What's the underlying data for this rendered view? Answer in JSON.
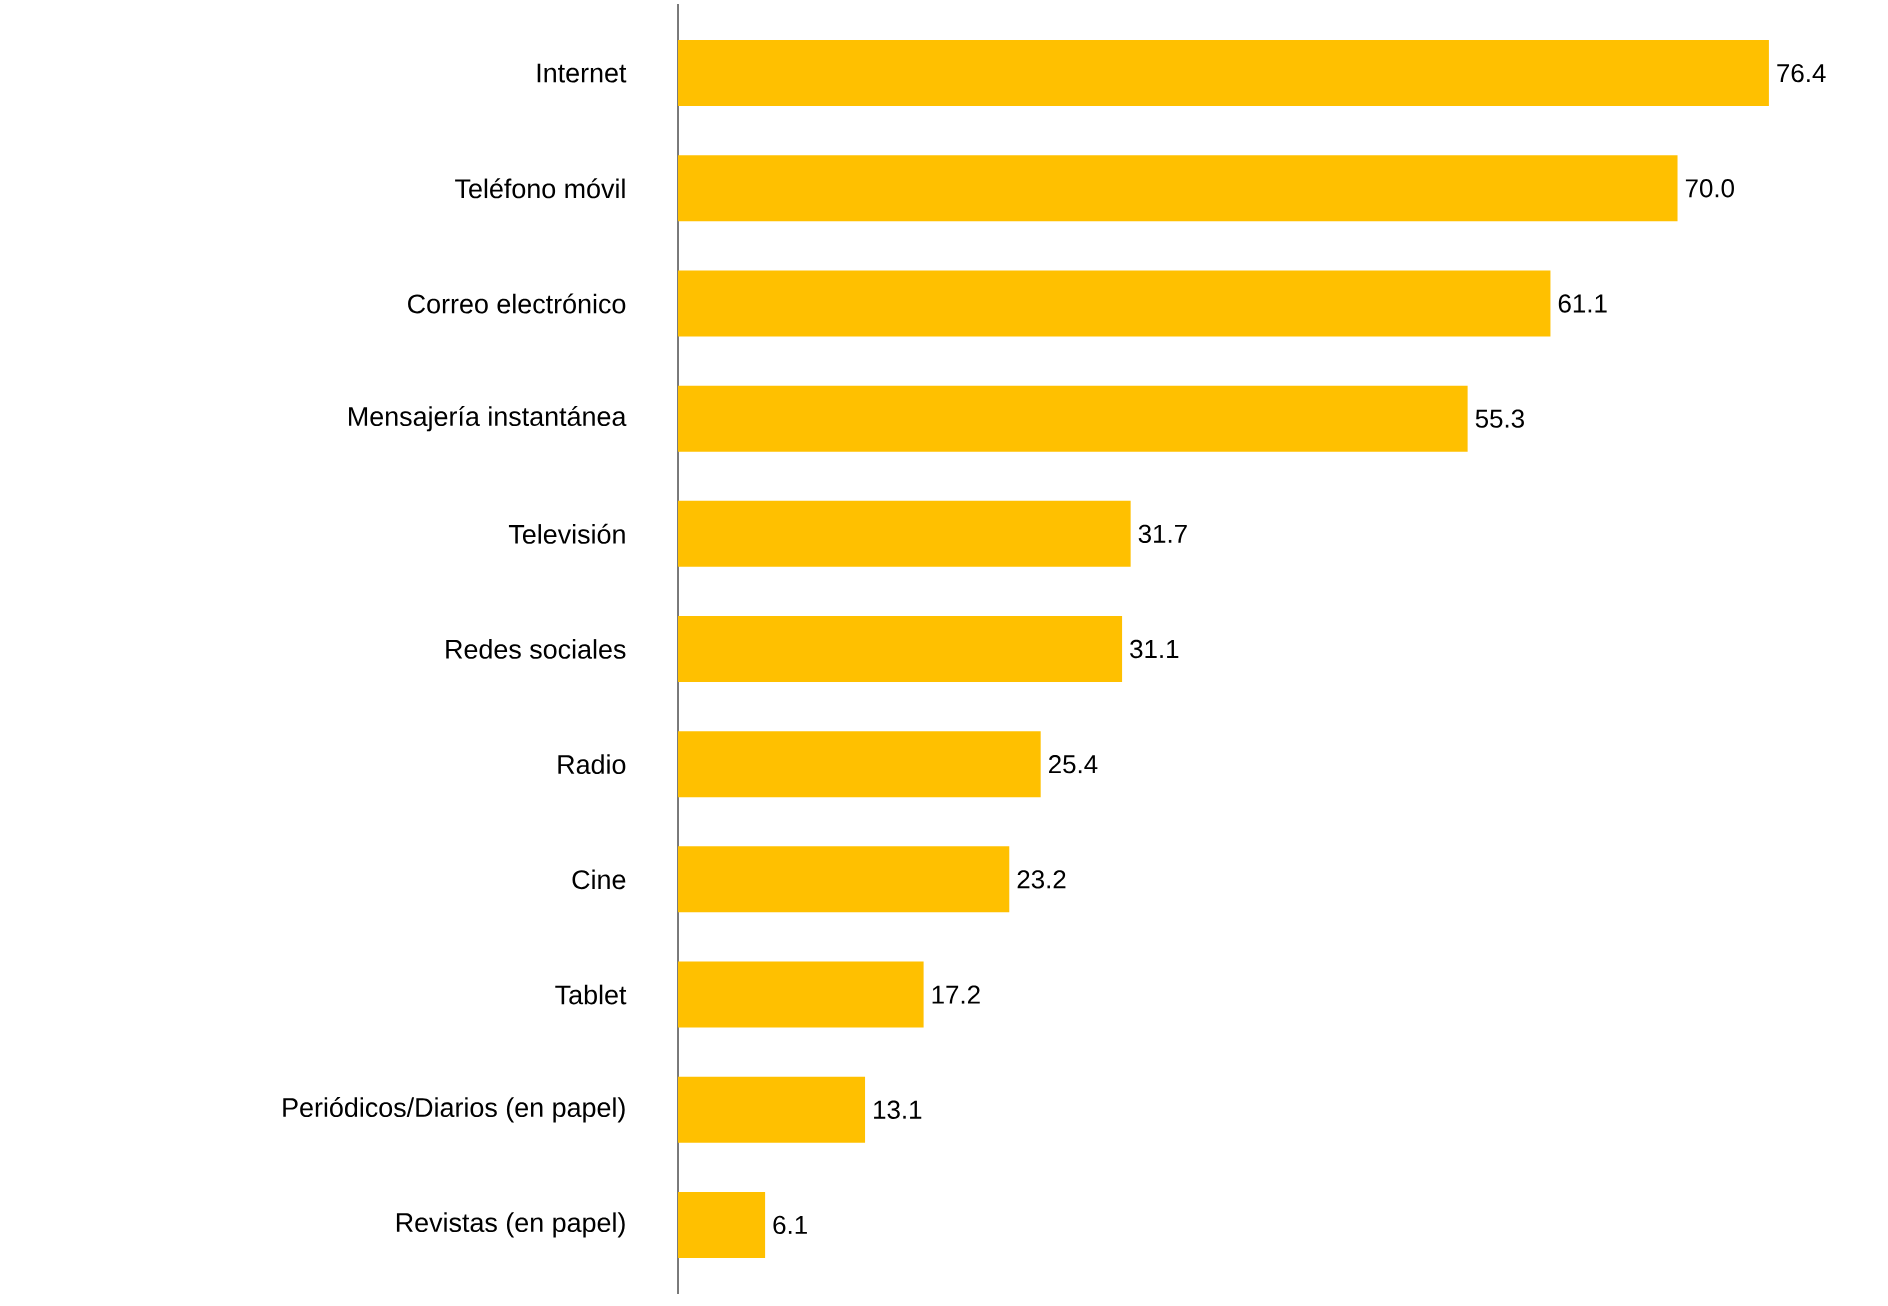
{
  "chart_data": {
    "type": "bar",
    "orientation": "horizontal",
    "categories": [
      "Internet",
      "Teléfono móvil",
      "Correo electrónico",
      "Mensajería instantánea",
      "Televisión",
      "Redes sociales",
      "Radio",
      "Cine",
      "Tablet",
      "Periódicos/Diarios (en papel)",
      "Revistas (en papel)"
    ],
    "values": [
      76.4,
      70.0,
      61.1,
      55.3,
      31.7,
      31.1,
      25.4,
      23.2,
      17.2,
      13.1,
      6.1
    ],
    "value_labels": [
      "76.4",
      "70.0",
      "61.1",
      "55.3",
      "31.7",
      "31.1",
      "25.4",
      "23.2",
      "17.2",
      "13.1",
      "6.1"
    ],
    "color": "#ffc000"
  }
}
